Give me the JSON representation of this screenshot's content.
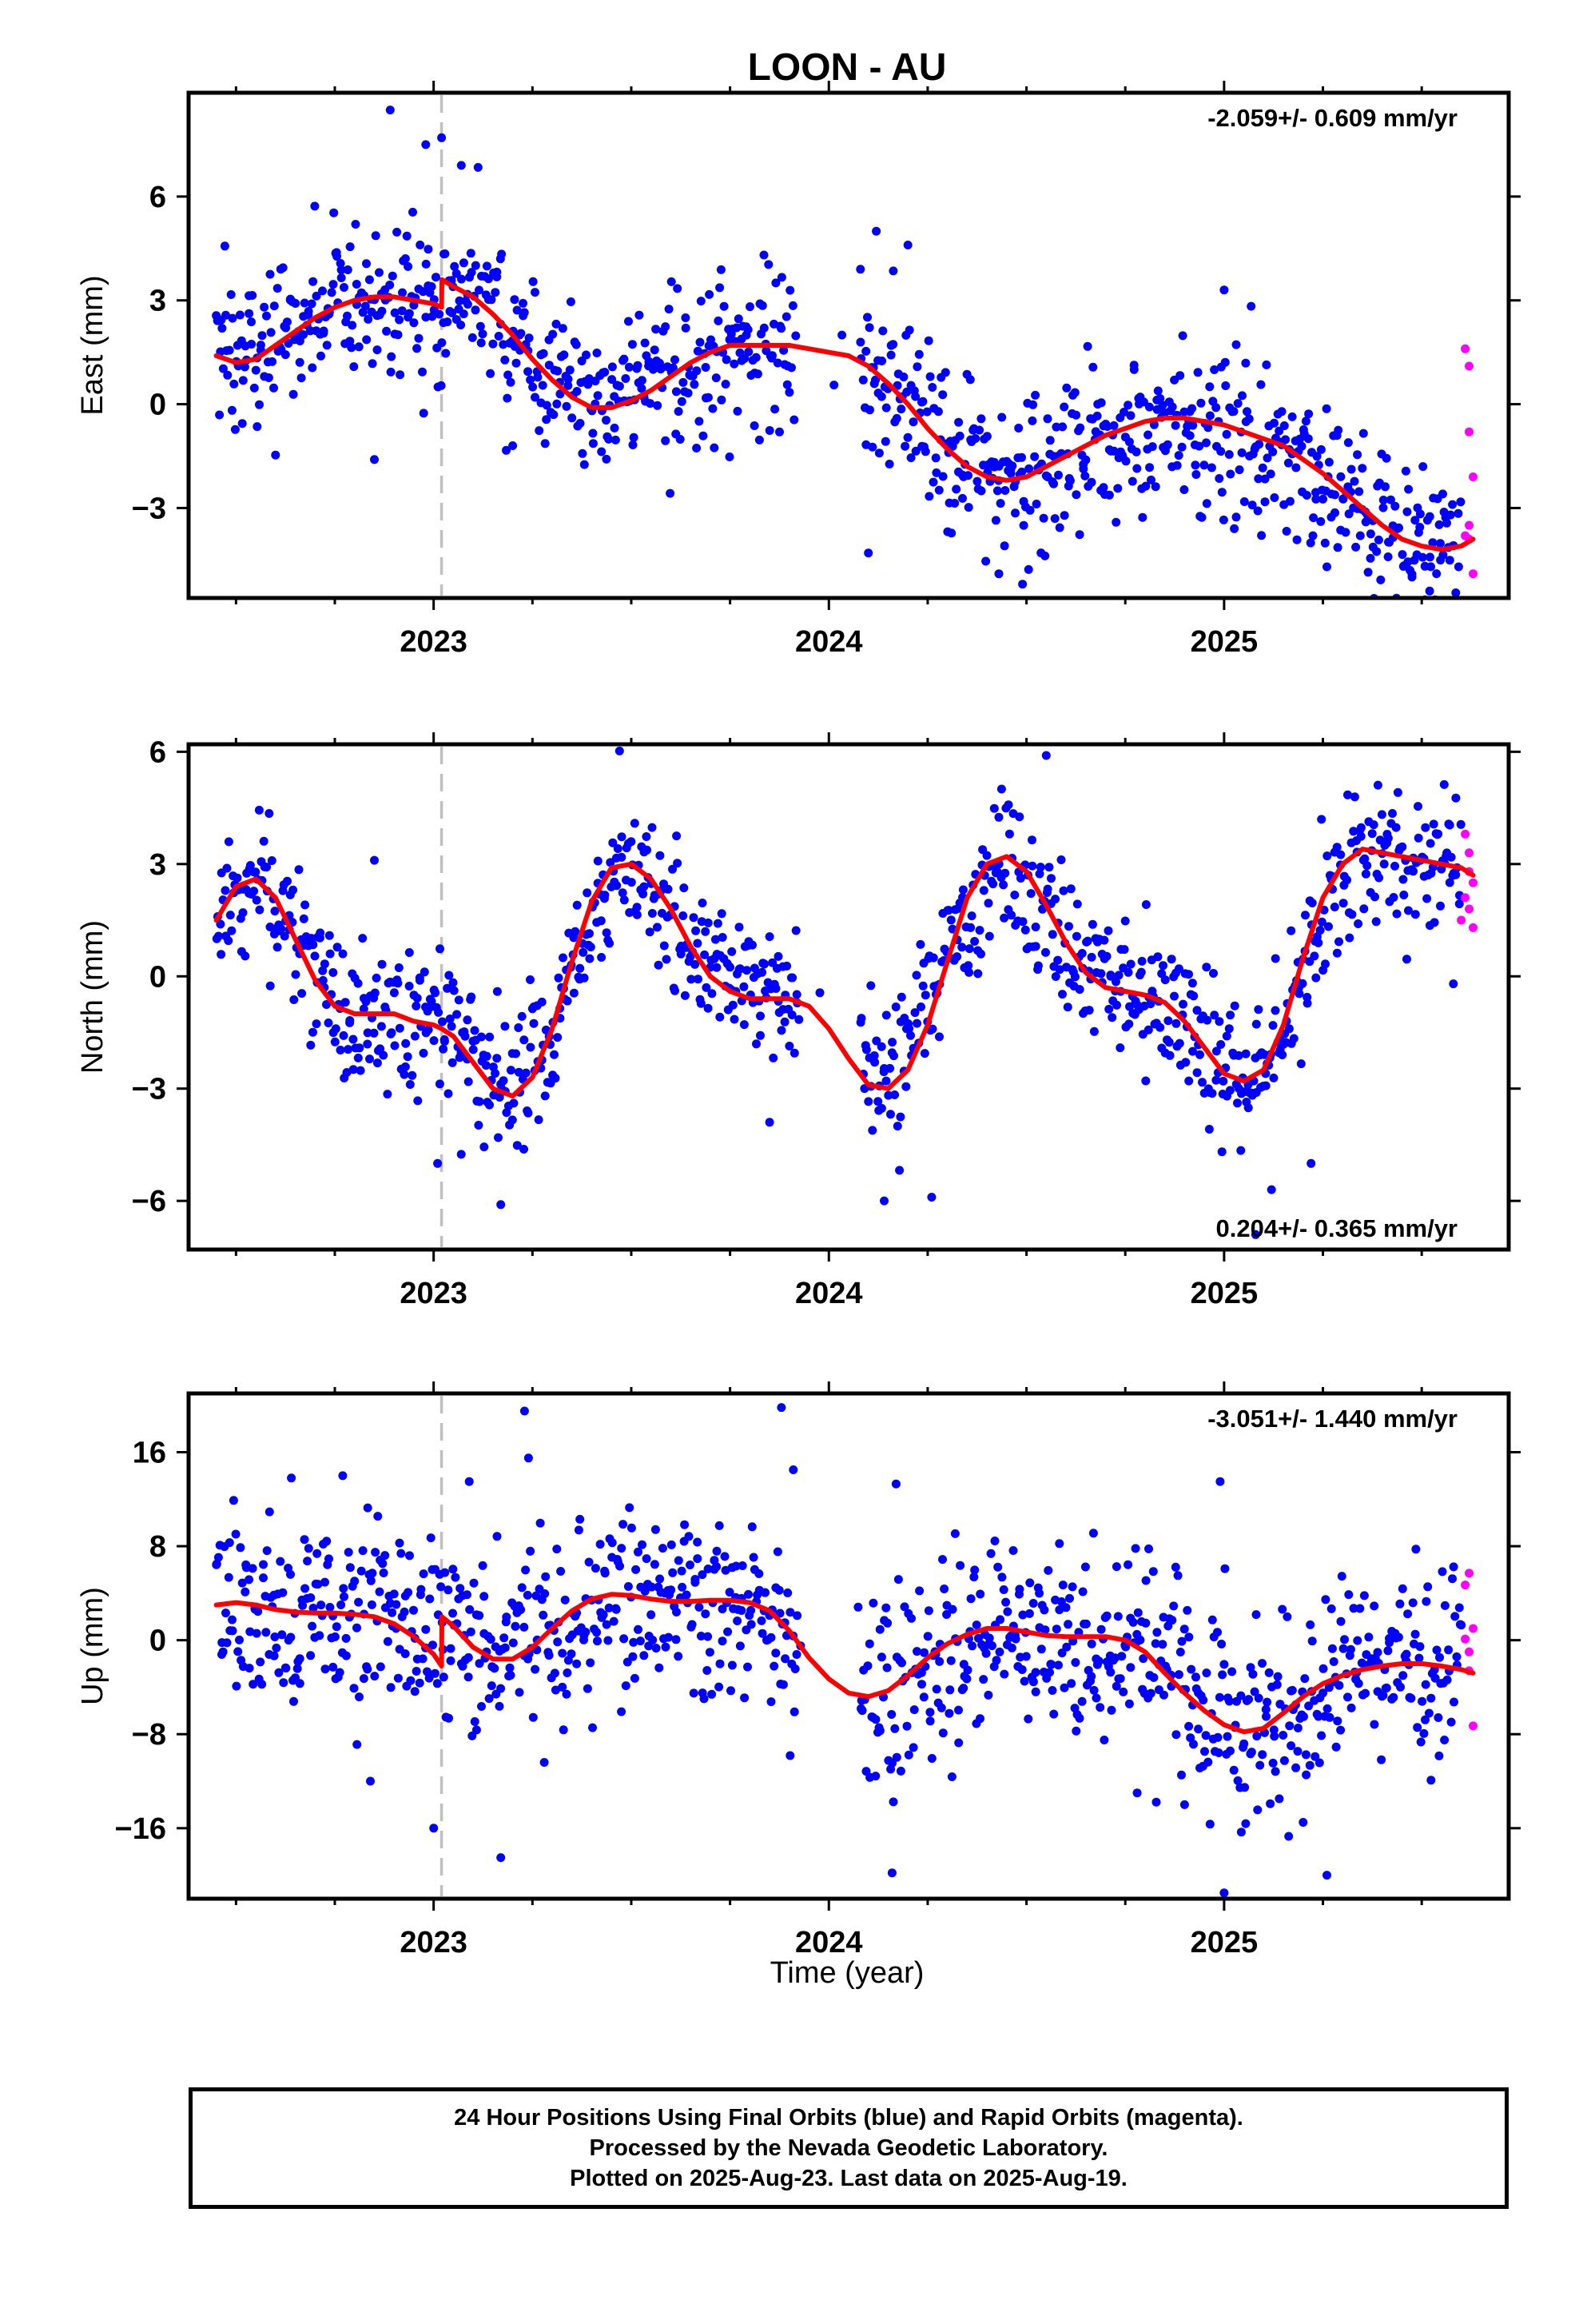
{
  "title": "LOON - AU",
  "xlabel": "Time (year)",
  "footer": {
    "line1": "24 Hour Positions Using Final Orbits (blue) and Rapid Orbits (magenta).",
    "line2": "Processed by the Nevada Geodetic Laboratory.",
    "line3": "Plotted on 2025-Aug-23. Last data on 2025-Aug-19."
  },
  "colors": {
    "final_orbits": "#0000ff",
    "rapid_orbits": "#ff00ff",
    "model_fit": "#ff0000",
    "event_line": "#c0c0c0"
  },
  "chart_data": [
    {
      "type": "scatter",
      "component": "East",
      "ylabel": "East (mm)",
      "rate_label": "-2.059+/- 0.609 mm/yr",
      "xlim": [
        2022.38,
        2025.72
      ],
      "ylim": [
        -5.6,
        9.0
      ],
      "yticks": [
        -3,
        0,
        3,
        6
      ],
      "xticks": [
        2023,
        2024,
        2025
      ],
      "event_x": 2023.02,
      "grid": false,
      "series": [
        {
          "role": "model",
          "x": [
            2022.45,
            2022.5,
            2022.55,
            2022.6,
            2022.65,
            2022.7,
            2022.75,
            2022.8,
            2022.85,
            2022.9,
            2022.95,
            2023.0,
            2023.02,
            2023.021,
            2023.05,
            2023.1,
            2023.15,
            2023.2,
            2023.25,
            2023.3,
            2023.35,
            2023.4,
            2023.45,
            2023.5,
            2023.55,
            2023.6,
            2023.65,
            2023.7,
            2023.75,
            2023.8,
            2023.85,
            2023.9,
            2023.95,
            2024.0,
            2024.05,
            2024.1,
            2024.15,
            2024.2,
            2024.25,
            2024.3,
            2024.35,
            2024.4,
            2024.45,
            2024.5,
            2024.55,
            2024.6,
            2024.65,
            2024.7,
            2024.75,
            2024.8,
            2024.85,
            2024.9,
            2024.95,
            2025.0,
            2025.05,
            2025.1,
            2025.15,
            2025.2,
            2025.25,
            2025.3,
            2025.35,
            2025.4,
            2025.45,
            2025.5,
            2025.55,
            2025.6,
            2025.63
          ],
          "y": [
            1.4,
            1.2,
            1.3,
            1.7,
            2.1,
            2.5,
            2.8,
            3.0,
            3.1,
            3.1,
            3.0,
            2.9,
            2.8,
            3.6,
            3.4,
            3.1,
            2.6,
            2.0,
            1.3,
            0.7,
            0.2,
            -0.1,
            -0.1,
            0.1,
            0.4,
            0.8,
            1.2,
            1.5,
            1.7,
            1.7,
            1.7,
            1.7,
            1.6,
            1.5,
            1.4,
            1.1,
            0.6,
            0.0,
            -0.7,
            -1.3,
            -1.8,
            -2.1,
            -2.2,
            -2.1,
            -1.8,
            -1.5,
            -1.2,
            -0.9,
            -0.7,
            -0.5,
            -0.4,
            -0.4,
            -0.5,
            -0.6,
            -0.8,
            -1.0,
            -1.2,
            -1.6,
            -2.0,
            -2.5,
            -3.0,
            -3.5,
            -3.9,
            -4.1,
            -4.2,
            -4.1,
            -3.9
          ]
        },
        {
          "role": "rapid_orbits",
          "x": [
            2025.61,
            2025.62,
            2025.62,
            2025.63,
            2025.62,
            2025.61,
            2025.62,
            2025.63
          ],
          "y": [
            1.6,
            1.1,
            -0.8,
            -2.1,
            -3.5,
            -3.8,
            -3.9,
            -4.9
          ]
        },
        {
          "role": "final_orbits",
          "trend": [
            [
              2022.45,
              1.3
            ],
            [
              2022.6,
              1.7
            ],
            [
              2022.8,
              3.0
            ],
            [
              2022.95,
              3.0
            ],
            [
              2023.02,
              2.8
            ],
            [
              2023.021,
              3.6
            ],
            [
              2023.15,
              2.6
            ],
            [
              2023.3,
              0.7
            ],
            [
              2023.42,
              -0.1
            ],
            [
              2023.6,
              0.8
            ],
            [
              2023.8,
              1.7
            ],
            [
              2023.95,
              1.6
            ],
            [
              2024.15,
              0.6
            ],
            [
              2024.3,
              -1.3
            ],
            [
              2024.5,
              -2.2
            ],
            [
              2024.7,
              -0.9
            ],
            [
              2024.9,
              -0.4
            ],
            [
              2025.1,
              -1.0
            ],
            [
              2025.3,
              -2.5
            ],
            [
              2025.45,
              -3.9
            ],
            [
              2025.6,
              -3.9
            ]
          ],
          "sigma": 1.15,
          "gaps": [
            [
              2023.92,
              2024.08
            ]
          ],
          "range": [
            2022.45,
            2025.6
          ],
          "count": 1050,
          "outliers": [
            [
              2022.89,
              8.5
            ],
            [
              2022.98,
              7.5
            ],
            [
              2023.02,
              7.7
            ],
            [
              2023.07,
              6.9
            ],
            [
              2024.12,
              5.0
            ],
            [
              2024.2,
              4.6
            ],
            [
              2024.08,
              3.9
            ],
            [
              2025.0,
              3.3
            ],
            [
              2025.52,
              -5.4
            ],
            [
              2024.49,
              -5.2
            ],
            [
              2024.43,
              -4.9
            ],
            [
              2025.26,
              -4.7
            ],
            [
              2024.1,
              -4.3
            ],
            [
              2022.85,
              -1.6
            ],
            [
              2023.2,
              -1.2
            ]
          ]
        }
      ]
    },
    {
      "type": "scatter",
      "component": "North",
      "ylabel": "North (mm)",
      "rate_label": "0.204+/- 0.365 mm/yr",
      "xlim": [
        2022.38,
        2025.72
      ],
      "ylim": [
        -7.3,
        6.2
      ],
      "yticks": [
        -6,
        -3,
        0,
        3,
        6
      ],
      "xticks": [
        2023,
        2024,
        2025
      ],
      "event_x": 2023.02,
      "grid": false,
      "series": [
        {
          "role": "model",
          "x": [
            2022.45,
            2022.5,
            2022.55,
            2022.6,
            2022.65,
            2022.7,
            2022.75,
            2022.8,
            2022.85,
            2022.9,
            2022.95,
            2023.0,
            2023.02,
            2023.05,
            2023.1,
            2023.15,
            2023.2,
            2023.25,
            2023.3,
            2023.35,
            2023.4,
            2023.45,
            2023.5,
            2023.55,
            2023.6,
            2023.65,
            2023.7,
            2023.75,
            2023.8,
            2023.85,
            2023.9,
            2023.95,
            2024.0,
            2024.05,
            2024.1,
            2024.15,
            2024.2,
            2024.25,
            2024.3,
            2024.35,
            2024.4,
            2024.45,
            2024.5,
            2024.55,
            2024.6,
            2024.65,
            2024.7,
            2024.75,
            2024.8,
            2024.85,
            2024.9,
            2024.95,
            2025.0,
            2025.05,
            2025.1,
            2025.15,
            2025.2,
            2025.25,
            2025.3,
            2025.35,
            2025.4,
            2025.45,
            2025.5,
            2025.55,
            2025.6,
            2025.63
          ],
          "y": [
            1.5,
            2.4,
            2.6,
            2.1,
            1.0,
            -0.1,
            -0.8,
            -1.0,
            -1.0,
            -1.0,
            -1.2,
            -1.3,
            -1.4,
            -1.6,
            -2.3,
            -3.0,
            -3.2,
            -2.7,
            -1.4,
            0.4,
            2.0,
            2.9,
            3.0,
            2.6,
            1.8,
            0.8,
            0.0,
            -0.4,
            -0.6,
            -0.6,
            -0.6,
            -0.8,
            -1.4,
            -2.2,
            -2.9,
            -3.0,
            -2.5,
            -1.3,
            0.4,
            2.1,
            3.0,
            3.2,
            2.8,
            1.9,
            0.9,
            0.1,
            -0.3,
            -0.4,
            -0.5,
            -0.7,
            -1.2,
            -1.9,
            -2.6,
            -2.8,
            -2.5,
            -1.3,
            0.5,
            2.1,
            3.0,
            3.4,
            3.3,
            3.2,
            3.1,
            3.0,
            2.9,
            2.7
          ]
        },
        {
          "role": "rapid_orbits",
          "x": [
            2025.61,
            2025.62,
            2025.63,
            2025.61,
            2025.62,
            2025.6,
            2025.63,
            2025.62
          ],
          "y": [
            3.8,
            3.3,
            2.5,
            2.1,
            1.8,
            1.5,
            1.3,
            2.8
          ]
        },
        {
          "role": "final_orbits",
          "trend": [
            [
              2022.45,
              1.6
            ],
            [
              2022.55,
              2.6
            ],
            [
              2022.65,
              1.0
            ],
            [
              2022.75,
              -0.8
            ],
            [
              2023.0,
              -1.3
            ],
            [
              2023.2,
              -3.2
            ],
            [
              2023.3,
              -1.4
            ],
            [
              2023.45,
              2.9
            ],
            [
              2023.55,
              2.6
            ],
            [
              2023.7,
              0.0
            ],
            [
              2023.85,
              -0.6
            ],
            [
              2023.95,
              -0.8
            ],
            [
              2024.15,
              -3.0
            ],
            [
              2024.3,
              0.4
            ],
            [
              2024.45,
              3.2
            ],
            [
              2024.6,
              0.9
            ],
            [
              2024.85,
              -0.7
            ],
            [
              2025.05,
              -2.8
            ],
            [
              2025.15,
              -1.3
            ],
            [
              2025.3,
              3.0
            ],
            [
              2025.6,
              2.9
            ]
          ],
          "sigma": 0.95,
          "gaps": [
            [
              2023.92,
              2024.08
            ]
          ],
          "range": [
            2022.45,
            2025.6
          ],
          "count": 1050,
          "outliers": [
            [
              2024.55,
              5.9
            ],
            [
              2023.01,
              -5.0
            ],
            [
              2023.17,
              -6.1
            ],
            [
              2024.14,
              -6.0
            ],
            [
              2024.26,
              -5.9
            ],
            [
              2025.08,
              -6.9
            ],
            [
              2025.12,
              -5.7
            ],
            [
              2025.22,
              -5.0
            ],
            [
              2022.85,
              3.1
            ],
            [
              2023.85,
              -3.9
            ],
            [
              2025.58,
              -0.2
            ]
          ]
        }
      ]
    },
    {
      "type": "scatter",
      "component": "Up",
      "ylabel": "Up (mm)",
      "rate_label": "-3.051+/- 1.440 mm/yr",
      "xlim": [
        2022.38,
        2025.72
      ],
      "ylim": [
        -22.0,
        21.0
      ],
      "yticks": [
        -16,
        -8,
        0,
        8,
        16
      ],
      "xticks": [
        2023,
        2024,
        2025
      ],
      "event_x": 2023.02,
      "grid": false,
      "series": [
        {
          "role": "model",
          "x": [
            2022.45,
            2022.5,
            2022.55,
            2022.6,
            2022.65,
            2022.7,
            2022.75,
            2022.8,
            2022.85,
            2022.9,
            2022.95,
            2023.0,
            2023.02,
            2023.021,
            2023.05,
            2023.1,
            2023.15,
            2023.2,
            2023.25,
            2023.3,
            2023.35,
            2023.4,
            2023.45,
            2023.5,
            2023.55,
            2023.6,
            2023.65,
            2023.7,
            2023.75,
            2023.8,
            2023.85,
            2023.9,
            2023.95,
            2024.0,
            2024.05,
            2024.1,
            2024.15,
            2024.2,
            2024.25,
            2024.3,
            2024.35,
            2024.4,
            2024.45,
            2024.5,
            2024.55,
            2024.6,
            2024.65,
            2024.7,
            2024.75,
            2024.8,
            2024.85,
            2024.9,
            2024.95,
            2025.0,
            2025.05,
            2025.1,
            2025.15,
            2025.2,
            2025.25,
            2025.3,
            2025.35,
            2025.4,
            2025.45,
            2025.5,
            2025.55,
            2025.6,
            2025.63
          ],
          "y": [
            3.0,
            3.2,
            3.0,
            2.6,
            2.4,
            2.3,
            2.3,
            2.2,
            2.0,
            1.4,
            0.3,
            -1.2,
            -2.2,
            2.0,
            1.2,
            -0.6,
            -1.6,
            -1.6,
            -0.6,
            1.0,
            2.5,
            3.5,
            3.9,
            3.8,
            3.5,
            3.3,
            3.3,
            3.4,
            3.4,
            3.2,
            2.5,
            0.8,
            -1.5,
            -3.3,
            -4.5,
            -4.8,
            -4.3,
            -3.0,
            -1.5,
            -0.3,
            0.5,
            1.0,
            1.0,
            0.7,
            0.4,
            0.3,
            0.3,
            0.3,
            0.0,
            -1.0,
            -2.8,
            -4.5,
            -6.0,
            -7.2,
            -7.8,
            -7.5,
            -6.2,
            -4.8,
            -3.7,
            -3.0,
            -2.5,
            -2.2,
            -2.0,
            -2.0,
            -2.2,
            -2.5,
            -2.8
          ]
        },
        {
          "role": "rapid_orbits",
          "x": [
            2025.62,
            2025.61,
            2025.63,
            2025.61,
            2025.62,
            2025.62,
            2025.63
          ],
          "y": [
            5.7,
            4.7,
            1.0,
            0.1,
            -1.0,
            -2.6,
            -7.3
          ]
        },
        {
          "role": "final_orbits",
          "trend": [
            [
              2022.45,
              3.1
            ],
            [
              2022.6,
              2.6
            ],
            [
              2022.9,
              1.6
            ],
            [
              2023.02,
              -2.0
            ],
            [
              2023.021,
              2.0
            ],
            [
              2023.15,
              -1.6
            ],
            [
              2023.3,
              1.0
            ],
            [
              2023.45,
              3.9
            ],
            [
              2023.8,
              3.3
            ],
            [
              2023.95,
              -1.5
            ],
            [
              2024.1,
              -4.8
            ],
            [
              2024.25,
              -3.0
            ],
            [
              2024.45,
              1.0
            ],
            [
              2024.8,
              -1.0
            ],
            [
              2025.05,
              -7.2
            ],
            [
              2025.15,
              -7.5
            ],
            [
              2025.3,
              -3.0
            ],
            [
              2025.45,
              -2.0
            ],
            [
              2025.6,
              -2.5
            ]
          ],
          "sigma": 4.0,
          "gaps": [
            [
              2023.92,
              2024.08
            ]
          ],
          "range": [
            2022.45,
            2025.6
          ],
          "count": 1050,
          "outliers": [
            [
              2023.23,
              19.5
            ],
            [
              2023.88,
              19.8
            ],
            [
              2023.91,
              14.5
            ],
            [
              2023.24,
              15.5
            ],
            [
              2023.09,
              13.5
            ],
            [
              2024.17,
              13.3
            ],
            [
              2024.99,
              13.5
            ],
            [
              2022.64,
              13.8
            ],
            [
              2022.77,
              14.0
            ],
            [
              2024.16,
              -19.8
            ],
            [
              2025.0,
              -21.5
            ],
            [
              2025.26,
              -20.0
            ],
            [
              2023.17,
              -18.5
            ],
            [
              2023.0,
              -16.0
            ],
            [
              2025.2,
              -15.5
            ],
            [
              2024.9,
              -14.0
            ],
            [
              2022.84,
              -12.0
            ],
            [
              2024.78,
              -13.0
            ]
          ]
        }
      ]
    }
  ]
}
